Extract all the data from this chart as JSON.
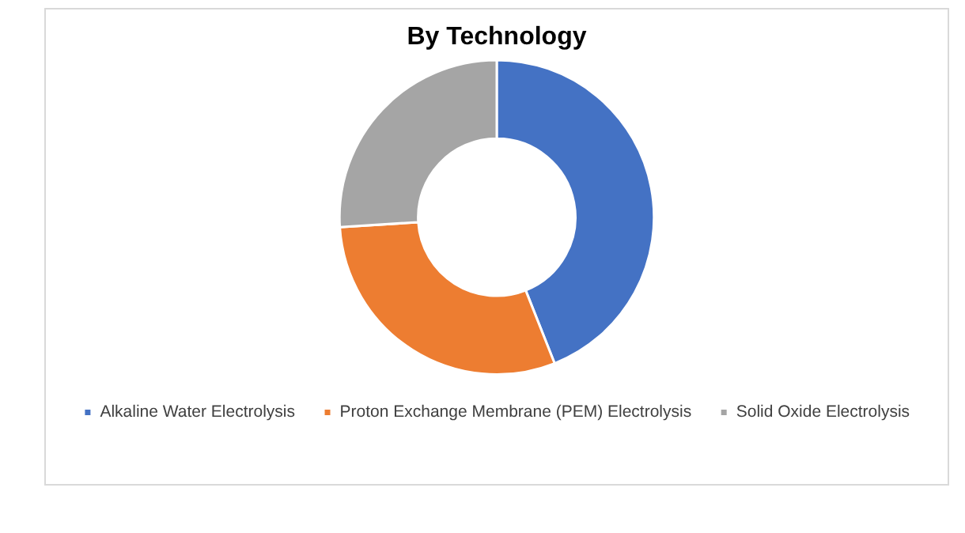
{
  "chart_data": {
    "type": "donut",
    "title": "By Technology",
    "categories": [
      "Alkaline Water Electrolysis",
      "Proton Exchange Membrane (PEM) Electrolysis",
      "Solid Oxide Electrolysis"
    ],
    "values": [
      44,
      30,
      26
    ],
    "colors": [
      "#4472c4",
      "#ed7d31",
      "#a5a5a5"
    ],
    "legend": "bottom"
  }
}
